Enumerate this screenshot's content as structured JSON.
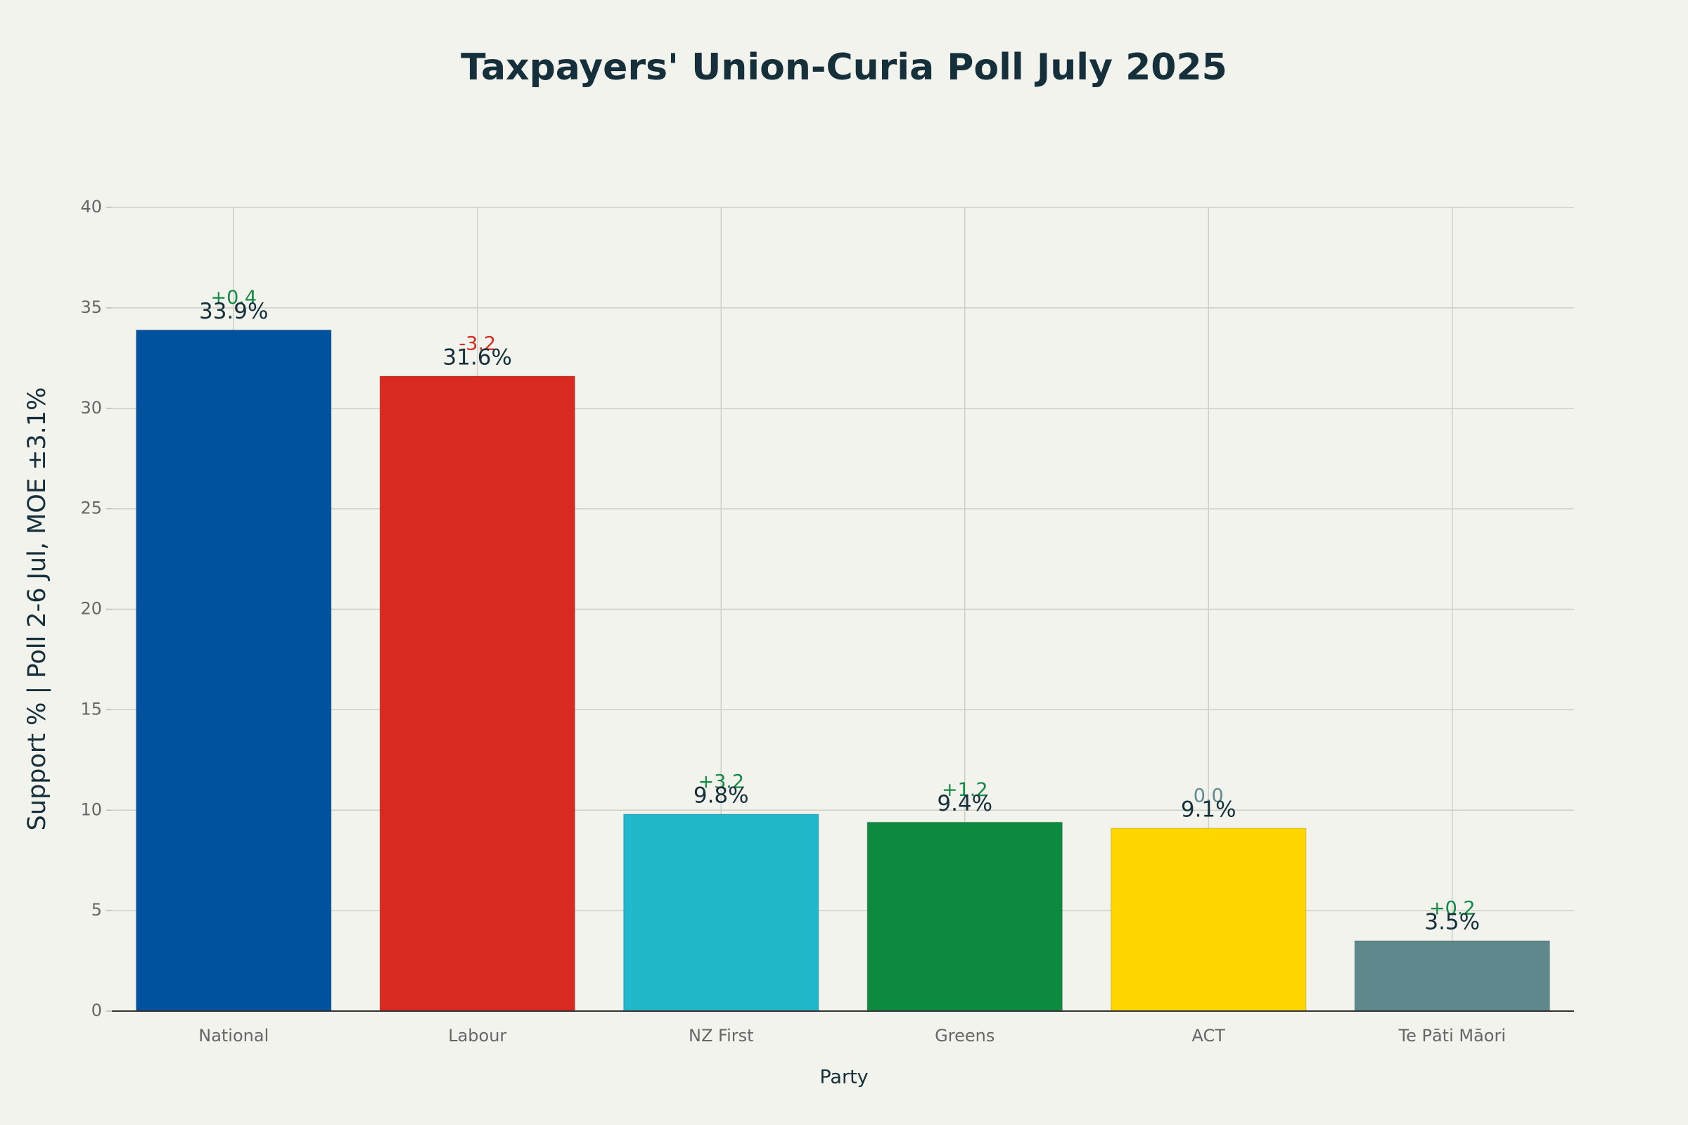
{
  "chart_data": {
    "type": "bar",
    "title": "Taxpayers' Union-Curia Poll July 2025",
    "x_label": "Party",
    "y_label": "Support % | Poll 2-6 Jul, MOE ±3.1%",
    "categories": [
      "National",
      "Labour",
      "NZ First",
      "Greens",
      "ACT",
      "Te Pāti Māori"
    ],
    "values": [
      33.9,
      31.6,
      9.8,
      9.4,
      9.1,
      3.5
    ],
    "value_labels": [
      "33.9%",
      "31.6%",
      "9.8%",
      "9.4%",
      "9.1%",
      "3.5%"
    ],
    "changes": [
      0.4,
      -3.2,
      3.2,
      1.2,
      0.0,
      0.2
    ],
    "change_labels": [
      "+0.4",
      "-3.2",
      "+3.2",
      "+1.2",
      "0.0",
      "+0.2"
    ],
    "change_colors": {
      "up": "#138a43",
      "down": "#d52b1e",
      "none": "#5e8a8f"
    },
    "colors": [
      "#00529f",
      "#d82a20",
      "#22b8cc",
      "#0c8a3f",
      "#ffd600",
      "#5f888d"
    ],
    "ylim": [
      0,
      40
    ],
    "yticks": [
      0,
      5,
      10,
      15,
      20,
      25,
      30,
      35,
      40
    ],
    "grid": true
  }
}
